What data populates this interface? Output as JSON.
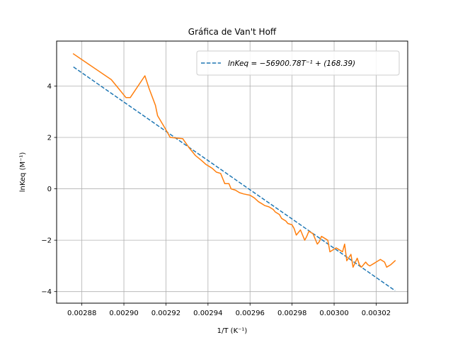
{
  "chart_data": {
    "type": "line",
    "title": "Gráfica de Van't Hoff",
    "xlabel": "1/T (K⁻¹)",
    "ylabel": "lnKeq (M⁻¹)",
    "xlim": [
      0.002868,
      0.003035
    ],
    "ylim": [
      -4.45,
      5.75
    ],
    "grid": true,
    "legend_position": "top-right",
    "x_ticks": [
      0.00288,
      0.0029,
      0.00292,
      0.00294,
      0.00296,
      0.00298,
      0.003,
      0.00302
    ],
    "x_tick_labels": [
      "0.00288",
      "0.00290",
      "0.00292",
      "0.00294",
      "0.00296",
      "0.00298",
      "0.00300",
      "0.00302"
    ],
    "y_ticks": [
      -4,
      -2,
      0,
      2,
      4
    ],
    "y_tick_labels": [
      "−4",
      "−2",
      "0",
      "2",
      "4"
    ],
    "legend_entry": "lnKeq = −56900.78T⁻¹ + (168.39)",
    "fit": {
      "slope": -56900.78,
      "intercept": 168.39,
      "x_start": 0.002876,
      "x_end": 0.003029,
      "color": "#1f77b4",
      "style": "dashed"
    },
    "series": [
      {
        "color": "#ff7f0e",
        "x": [
          0.002876,
          0.002894,
          0.002898,
          0.002901,
          0.002903,
          0.00291,
          0.002912,
          0.002915,
          0.002916,
          0.00292,
          0.002922,
          0.002928,
          0.002931,
          0.002934,
          0.002937,
          0.002939,
          0.002941,
          0.002942,
          0.002944,
          0.002946,
          0.002948,
          0.00295,
          0.002951,
          0.002953,
          0.002955,
          0.002957,
          0.00296,
          0.002962,
          0.002964,
          0.002966,
          0.002967,
          0.002969,
          0.002971,
          0.002972,
          0.002974,
          0.002975,
          0.002977,
          0.002978,
          0.00298,
          0.002981,
          0.002982,
          0.002984,
          0.002986,
          0.002987,
          0.002988,
          0.00299,
          0.002992,
          0.002993,
          0.002994,
          0.002996,
          0.002997,
          0.002998,
          0.003,
          0.003001,
          0.003002,
          0.003004,
          0.003005,
          0.003006,
          0.003008,
          0.003009,
          0.003011,
          0.003012,
          0.003013,
          0.003015,
          0.003016,
          0.003017,
          0.003019,
          0.00302,
          0.003021,
          0.003022,
          0.003024,
          0.003025,
          0.003027,
          0.003029
        ],
        "y": [
          5.25,
          4.25,
          3.85,
          3.55,
          3.55,
          4.4,
          3.9,
          3.25,
          2.85,
          2.3,
          2.0,
          1.95,
          1.6,
          1.3,
          1.1,
          0.95,
          0.85,
          0.8,
          0.65,
          0.6,
          0.2,
          0.2,
          0.0,
          -0.05,
          -0.15,
          -0.2,
          -0.25,
          -0.35,
          -0.5,
          -0.6,
          -0.65,
          -0.7,
          -0.8,
          -0.9,
          -1.0,
          -1.15,
          -1.25,
          -1.35,
          -1.4,
          -1.55,
          -1.8,
          -1.6,
          -2.0,
          -1.85,
          -1.65,
          -1.75,
          -2.15,
          -2.05,
          -1.85,
          -1.95,
          -2.0,
          -2.45,
          -2.35,
          -2.3,
          -2.35,
          -2.45,
          -2.15,
          -2.8,
          -2.55,
          -3.05,
          -2.7,
          -2.95,
          -3.05,
          -2.85,
          -2.95,
          -3.0,
          -2.9,
          -2.85,
          -2.8,
          -2.75,
          -2.85,
          -3.05,
          -2.95,
          -2.8
        ]
      }
    ]
  }
}
